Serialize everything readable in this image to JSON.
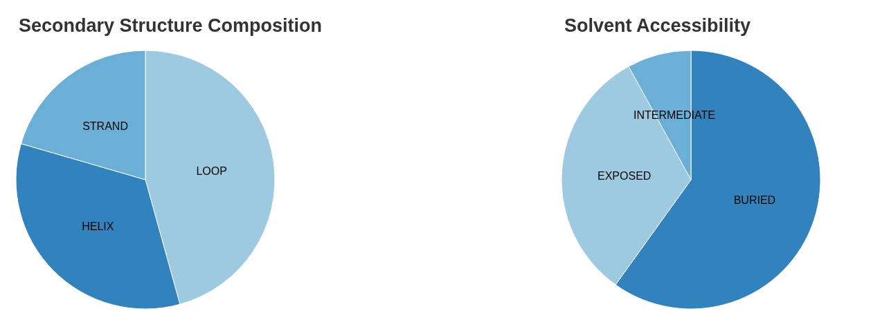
{
  "chart_data": [
    {
      "type": "pie",
      "title": "Secondary Structure Composition",
      "categories": [
        "LOOP",
        "HELIX",
        "STRAND"
      ],
      "values": [
        45.7,
        33.8,
        20.5
      ],
      "colors": [
        "#9ecae1",
        "#3182bd",
        "#6baed6"
      ]
    },
    {
      "type": "pie",
      "title": "Solvent Accessibility",
      "categories": [
        "BURIED",
        "EXPOSED",
        "INTERMEDIATE"
      ],
      "values": [
        59.9,
        32.1,
        8.0
      ],
      "colors": [
        "#3182bd",
        "#9ecae1",
        "#6baed6"
      ]
    }
  ]
}
